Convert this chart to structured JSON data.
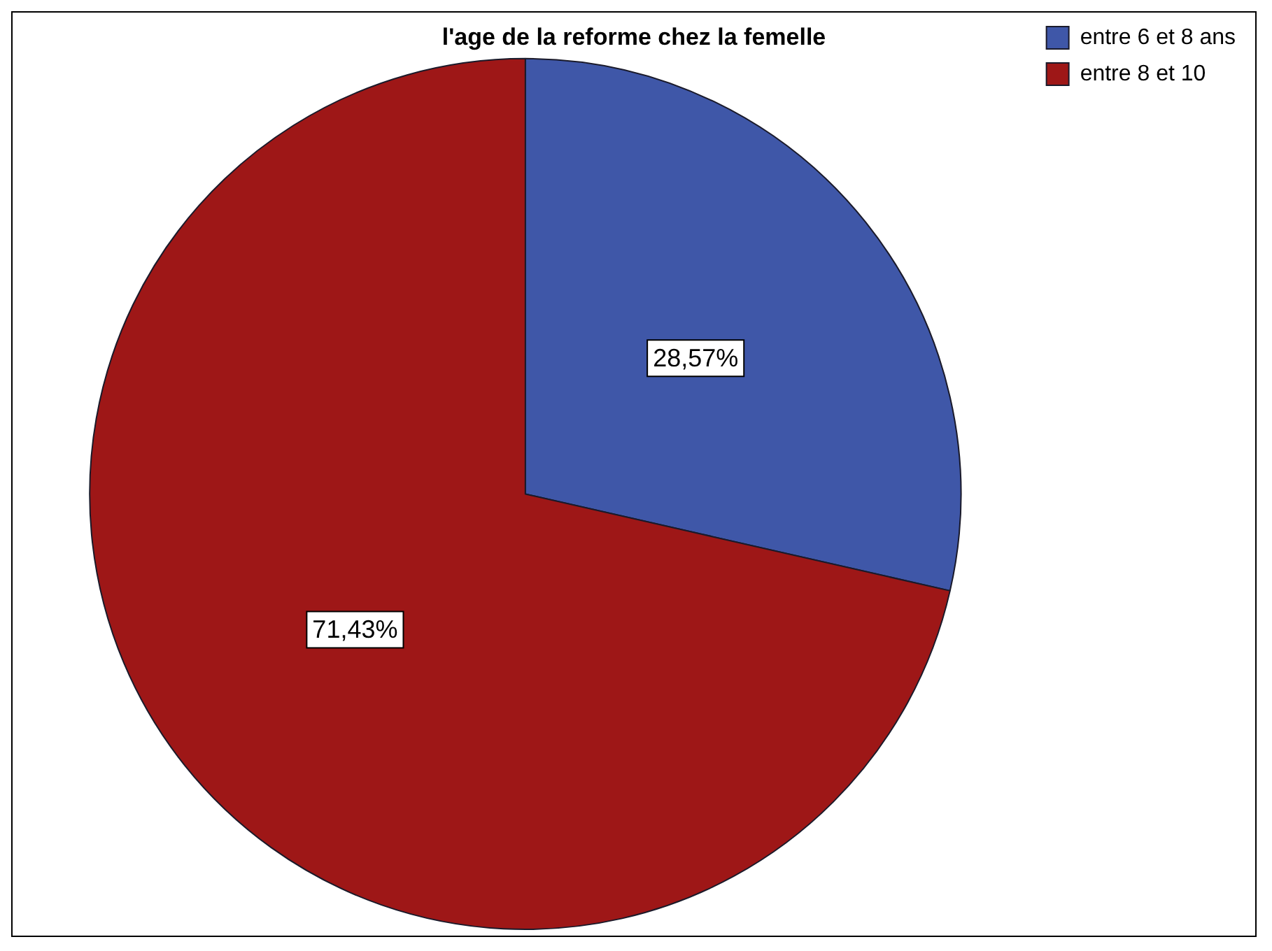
{
  "chart_data": {
    "type": "pie",
    "title": "l'age de la reforme chez la femelle",
    "categories": [
      "entre 6 et 8 ans",
      "entre 8 et 10"
    ],
    "values": [
      28.57,
      71.43
    ],
    "colors": [
      "#3f57a8",
      "#9e1717"
    ],
    "value_labels": [
      "28,57%",
      "71,43%"
    ],
    "legend": "top right"
  }
}
